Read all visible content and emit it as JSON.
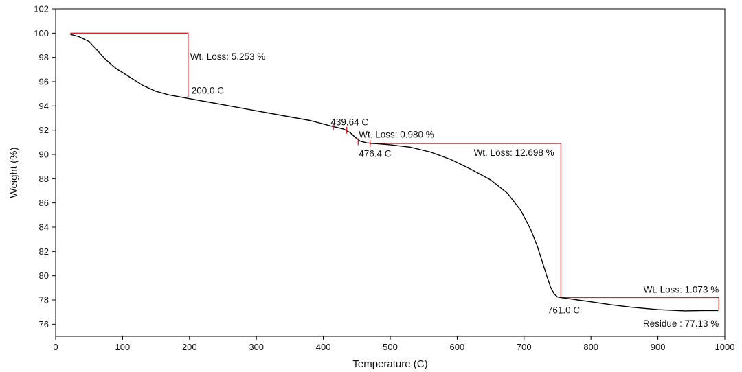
{
  "chart_data": {
    "type": "line",
    "title": "",
    "xlabel": "Temperature (C)",
    "ylabel": "Weight (%)",
    "xlim": [
      0,
      1000
    ],
    "ylim": [
      75,
      102
    ],
    "xticks": [
      0,
      100,
      200,
      300,
      400,
      500,
      600,
      700,
      800,
      900,
      1000
    ],
    "yticks": [
      76,
      78,
      80,
      82,
      84,
      86,
      88,
      90,
      92,
      94,
      96,
      98,
      100,
      102
    ],
    "grid": false,
    "colors": {
      "curve": "#000000",
      "annotation": "#e0202a"
    },
    "series": [
      {
        "name": "Weight",
        "x": [
          22,
          35,
          50,
          62,
          75,
          90,
          110,
          130,
          150,
          170,
          200,
          230,
          260,
          300,
          340,
          380,
          415,
          430,
          440,
          448,
          455,
          465,
          476,
          500,
          530,
          560,
          590,
          620,
          650,
          675,
          695,
          710,
          720,
          728,
          735,
          740,
          745,
          750,
          755,
          761,
          780,
          800,
          830,
          860,
          900,
          940,
          970,
          990
        ],
        "values": [
          99.9,
          99.7,
          99.3,
          98.6,
          97.8,
          97.1,
          96.4,
          95.7,
          95.2,
          94.9,
          94.6,
          94.3,
          94.0,
          93.6,
          93.2,
          92.8,
          92.3,
          92.1,
          91.8,
          91.4,
          91.1,
          90.95,
          90.9,
          90.8,
          90.6,
          90.2,
          89.6,
          88.8,
          87.9,
          86.8,
          85.4,
          83.8,
          82.4,
          81.0,
          79.8,
          79.0,
          78.5,
          78.25,
          78.2,
          78.15,
          78.0,
          77.85,
          77.6,
          77.4,
          77.2,
          77.1,
          77.13,
          77.13
        ]
      }
    ],
    "markers": [
      {
        "x": 415,
        "y": 92.3
      },
      {
        "x": 435,
        "y": 92.0
      },
      {
        "x": 452,
        "y": 91.05
      },
      {
        "x": 470,
        "y": 90.9
      }
    ],
    "steps": [
      {
        "x1": 22,
        "x2": 198,
        "y_top": 100.0,
        "y_bottom": 94.75
      },
      {
        "x1": 470,
        "x2": 755,
        "y_top": 90.9,
        "y_bottom": 78.2
      },
      {
        "x1": 755,
        "x2": 991,
        "y_top": 78.2,
        "y_bottom": 77.13
      }
    ],
    "annotations": [
      {
        "text": "Wt. Loss: 5.253 %",
        "x": 201,
        "y": 97.8,
        "anchor": "start"
      },
      {
        "text": "200.0 C",
        "x": 203,
        "y": 95.0,
        "anchor": "start"
      },
      {
        "text": "439.64 C",
        "x": 411,
        "y": 92.4,
        "anchor": "start"
      },
      {
        "text": "Wt. Loss: 0.980 %",
        "x": 453,
        "y": 91.4,
        "anchor": "start"
      },
      {
        "text": "476.4 C",
        "x": 453,
        "y": 89.8,
        "anchor": "start"
      },
      {
        "text": "Wt. Loss: 12.698 %",
        "x": 745,
        "y": 89.9,
        "anchor": "end"
      },
      {
        "text": "761.0 C",
        "x": 735,
        "y": 76.9,
        "anchor": "start"
      },
      {
        "text": "Wt. Loss: 1.073 %",
        "x": 991,
        "y": 78.6,
        "anchor": "end"
      },
      {
        "text": "Residue : 77.13 %",
        "x": 991,
        "y": 75.8,
        "anchor": "end"
      }
    ]
  }
}
